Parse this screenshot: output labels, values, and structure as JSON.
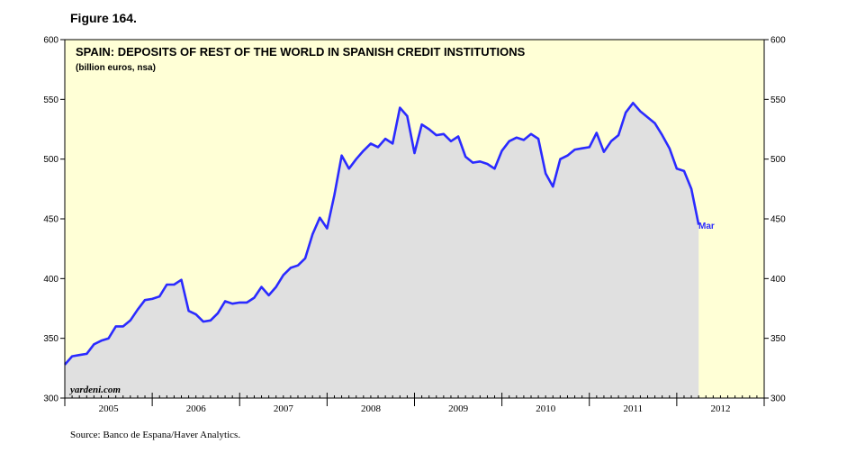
{
  "figure_label": "Figure 164.",
  "source": "Source: Banco de Espana/Haver Analytics.",
  "colors": {
    "plot_bg": "#FFFFD6",
    "fill": "#E0E0E0",
    "line": "#2B2BFF",
    "label": "#2B2BFF"
  },
  "chart_data": {
    "type": "area",
    "title": "SPAIN: DEPOSITS OF REST OF THE WORLD IN SPANISH CREDIT INSTITUTIONS",
    "subtitle": "(billion euros, nsa)",
    "watermark": "yardeni.com",
    "end_label": "Mar",
    "xlabel": "",
    "ylabel": "",
    "ylim": [
      300,
      600
    ],
    "xlim": [
      2005.0,
      2013.0
    ],
    "yticks": [
      300,
      350,
      400,
      450,
      500,
      550,
      600
    ],
    "yticks_right": [
      300,
      350,
      400,
      450,
      500,
      550,
      600
    ],
    "x_year_labels": [
      "2005",
      "2006",
      "2007",
      "2008",
      "2009",
      "2010",
      "2011",
      "2012"
    ],
    "grid": false,
    "series": [
      {
        "name": "Deposits of rest of the world",
        "start": "2005-01",
        "end": "2012-03",
        "frequency": "monthly",
        "values": [
          328,
          335,
          336,
          337,
          345,
          348,
          350,
          360,
          360,
          365,
          374,
          382,
          383,
          385,
          395,
          395,
          399,
          373,
          370,
          364,
          365,
          371,
          381,
          379,
          380,
          380,
          384,
          393,
          386,
          393,
          403,
          409,
          411,
          417,
          437,
          451,
          442,
          470,
          503,
          492,
          500,
          507,
          513,
          510,
          517,
          513,
          543,
          536,
          505,
          529,
          525,
          520,
          521,
          515,
          519,
          502,
          497,
          498,
          496,
          492,
          507,
          515,
          518,
          516,
          521,
          517,
          488,
          477,
          500,
          503,
          508,
          509,
          510,
          522,
          506,
          515,
          520,
          539,
          547,
          540,
          535,
          530,
          520,
          509,
          492,
          490,
          475,
          445
        ]
      }
    ]
  }
}
